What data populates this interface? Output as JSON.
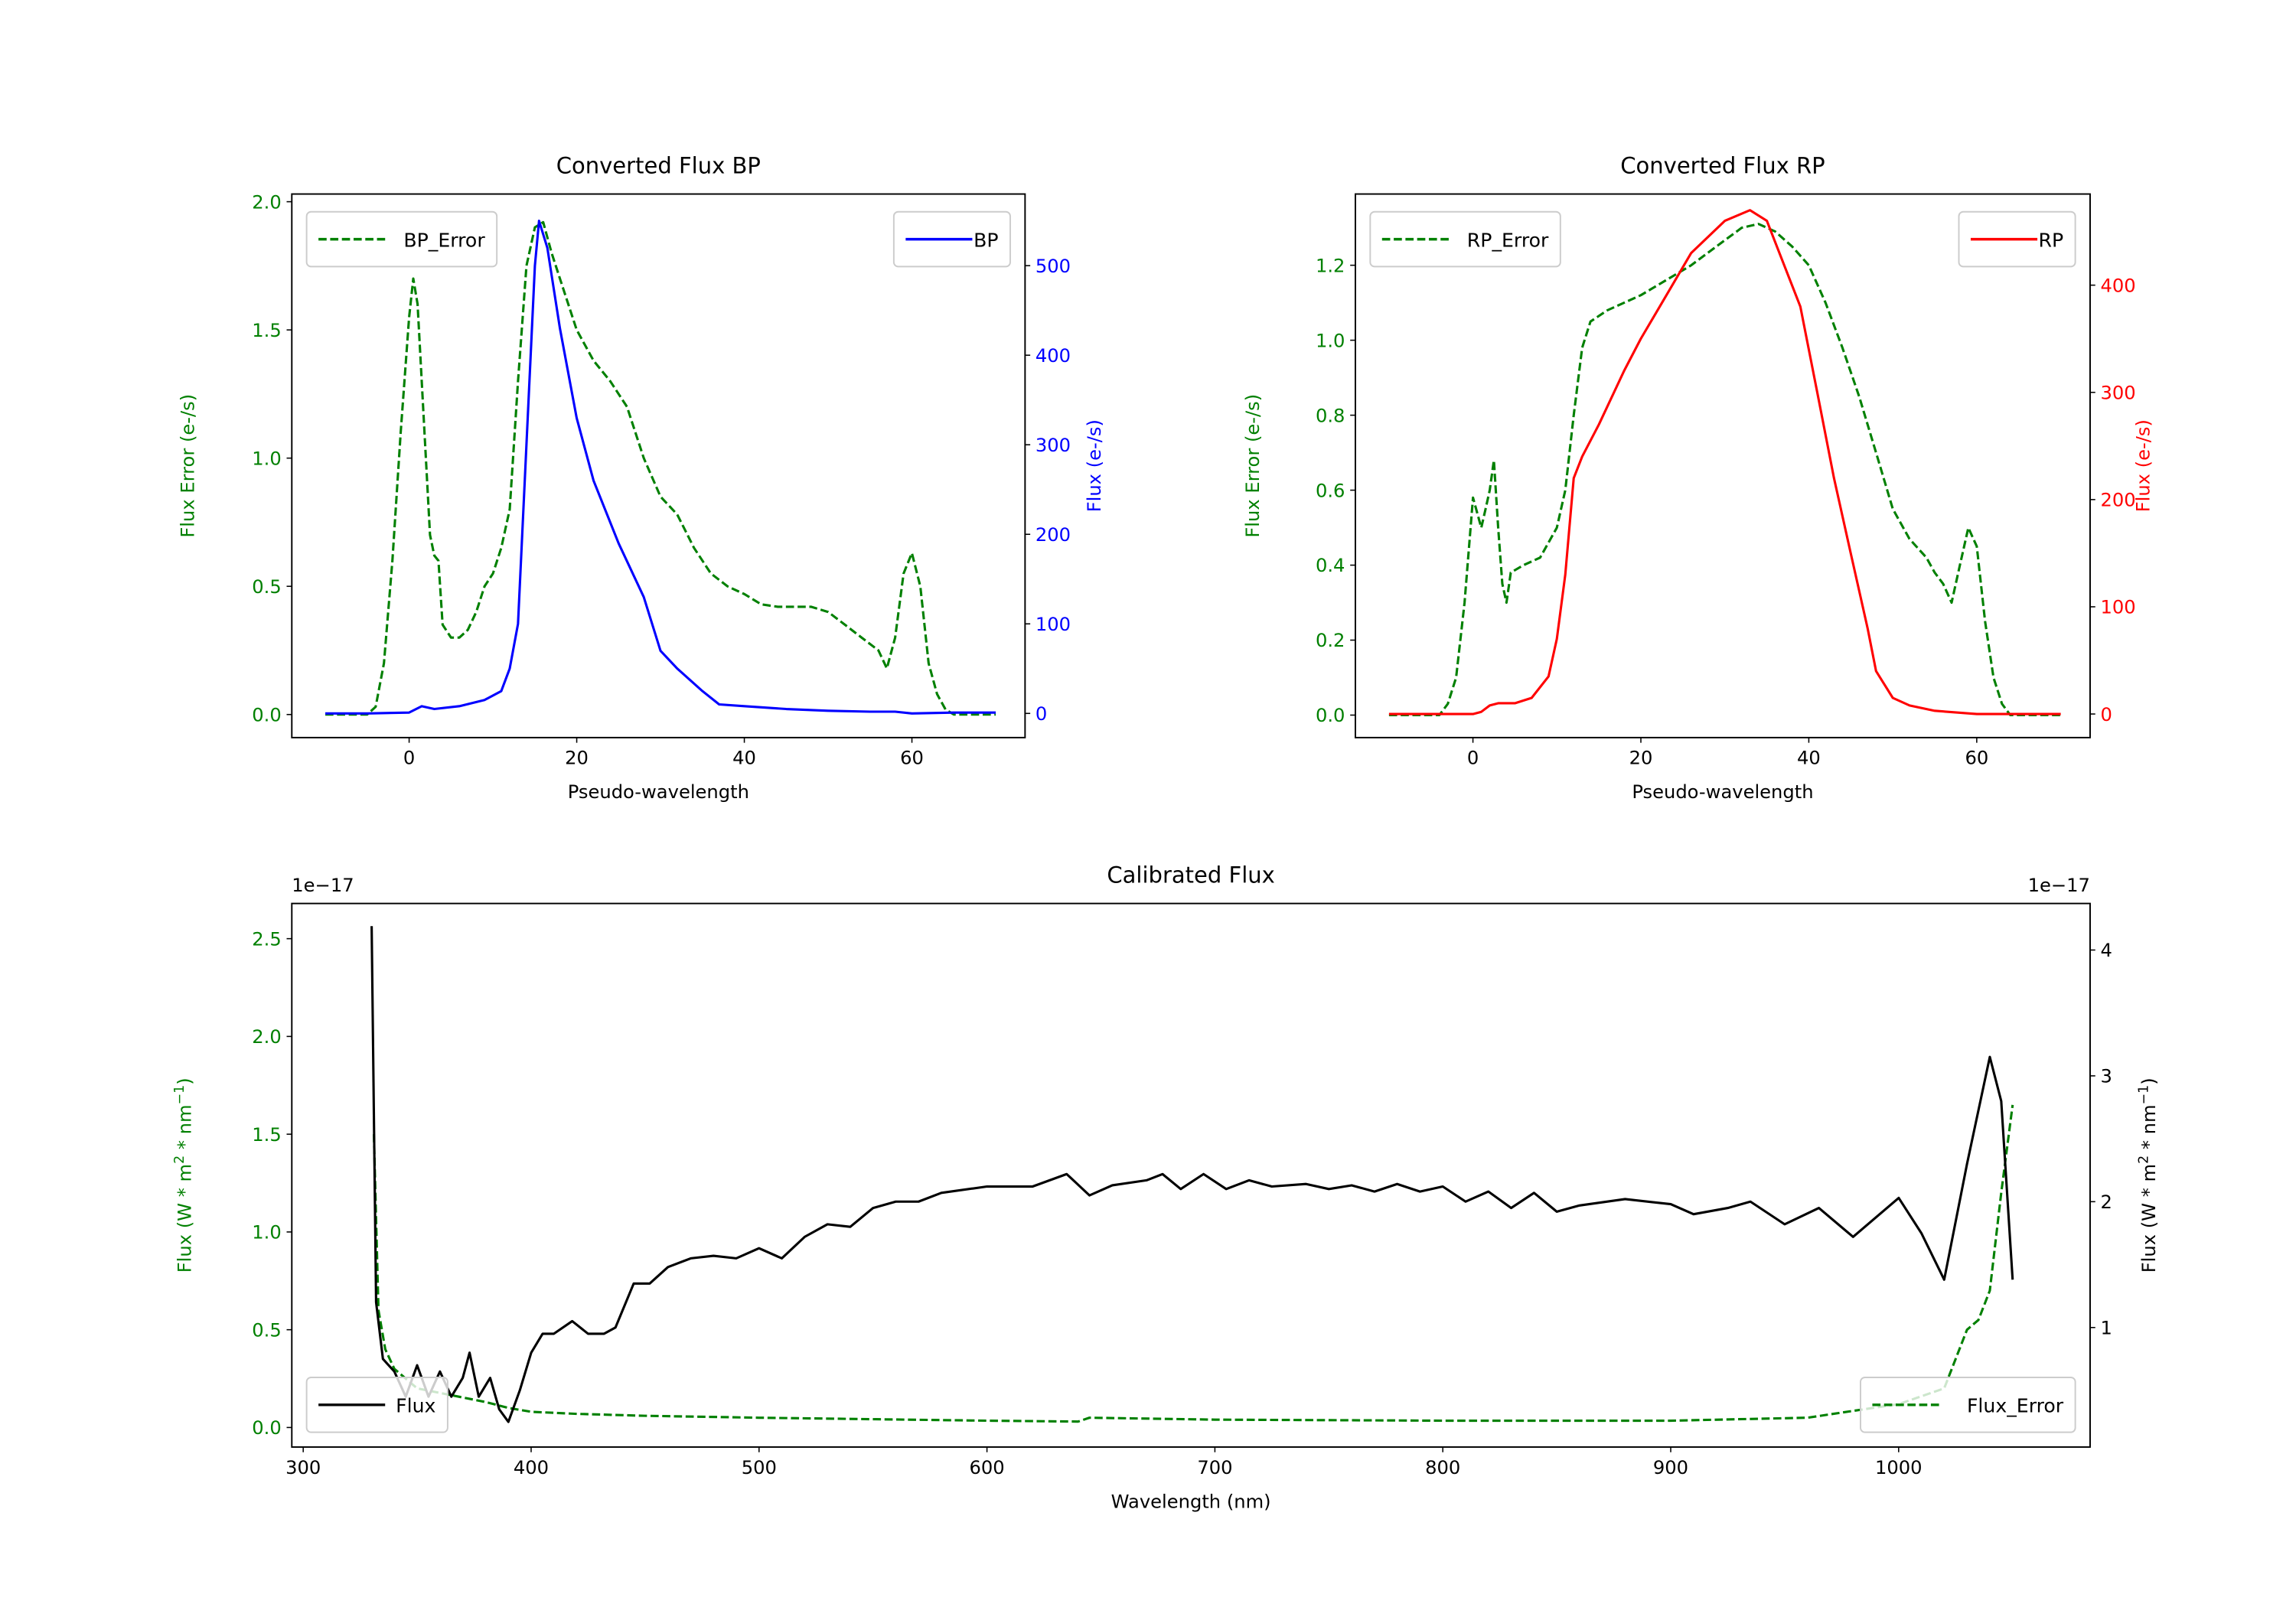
{
  "chart_data": [
    {
      "type": "line",
      "title": "Converted Flux BP",
      "xlabel": "Pseudo-wavelength",
      "ylabel_left": "Flux Error (e-/s)",
      "ylabel_right": "Flux (e-/s)",
      "xlim": [
        -14,
        73.5
      ],
      "ylim_left": [
        -0.09,
        2.03
      ],
      "ylim_right": [
        -27,
        580
      ],
      "xticks": [
        0,
        20,
        40,
        60
      ],
      "yticks_left": [
        "0.0",
        "0.5",
        "1.0",
        "1.5",
        "2.0"
      ],
      "yticks_right": [
        "0",
        "100",
        "200",
        "300",
        "400",
        "500"
      ],
      "left_color": "#008000",
      "right_color": "#0000ff",
      "legend_left": {
        "label": "BP_Error",
        "position": "upper left"
      },
      "legend_right": {
        "label": "BP",
        "position": "upper right"
      },
      "series": [
        {
          "name": "BP_Error",
          "axis": "left",
          "style": "dashed",
          "color": "#008000",
          "x": [
            -10,
            -5,
            -4,
            -3,
            -2,
            -1,
            0,
            0.5,
            1,
            2,
            2.5,
            3,
            3.5,
            4,
            5,
            6,
            7,
            8,
            9,
            10,
            11,
            12,
            13,
            14,
            15,
            16,
            17,
            18,
            20,
            22,
            24,
            26,
            28,
            30,
            32,
            34,
            36,
            38,
            40,
            42,
            44,
            46,
            48,
            50,
            52,
            54,
            56,
            57,
            58,
            59,
            60,
            61,
            62,
            63,
            64,
            65,
            70
          ],
          "y": [
            0,
            0,
            0.03,
            0.2,
            0.6,
            1.1,
            1.55,
            1.7,
            1.6,
            1.0,
            0.7,
            0.62,
            0.6,
            0.35,
            0.3,
            0.3,
            0.33,
            0.4,
            0.5,
            0.55,
            0.65,
            0.8,
            1.3,
            1.75,
            1.9,
            1.92,
            1.8,
            1.7,
            1.5,
            1.38,
            1.3,
            1.2,
            1.0,
            0.85,
            0.78,
            0.65,
            0.55,
            0.5,
            0.47,
            0.43,
            0.42,
            0.42,
            0.42,
            0.4,
            0.35,
            0.3,
            0.25,
            0.18,
            0.3,
            0.55,
            0.63,
            0.5,
            0.2,
            0.08,
            0.02,
            0,
            0
          ]
        },
        {
          "name": "BP",
          "axis": "right",
          "style": "solid",
          "color": "#0000ff",
          "x": [
            -10,
            -5,
            0,
            1.5,
            3,
            6,
            9,
            11,
            12,
            13,
            14,
            15,
            15.5,
            16.5,
            18,
            20,
            22,
            25,
            28,
            30,
            32,
            35,
            37,
            40,
            45,
            50,
            55,
            58,
            60,
            65,
            70
          ],
          "y": [
            0,
            0,
            1,
            8,
            5,
            8,
            15,
            25,
            50,
            100,
            300,
            500,
            550,
            520,
            430,
            330,
            260,
            190,
            130,
            70,
            50,
            25,
            10,
            8,
            5,
            3,
            2,
            2,
            0,
            1,
            1
          ]
        }
      ]
    },
    {
      "type": "line",
      "title": "Converted Flux RP",
      "xlabel": "Pseudo-wavelength",
      "ylabel_left": "Flux Error (e-/s)",
      "ylabel_right": "Flux (e-/s)",
      "xlim": [
        -14,
        73.5
      ],
      "ylim_left": [
        -0.06,
        1.39
      ],
      "ylim_right": [
        -22,
        485
      ],
      "xticks": [
        0,
        20,
        40,
        60
      ],
      "yticks_left": [
        "0.0",
        "0.2",
        "0.4",
        "0.6",
        "0.8",
        "1.0",
        "1.2"
      ],
      "yticks_right": [
        "0",
        "100",
        "200",
        "300",
        "400"
      ],
      "left_color": "#008000",
      "right_color": "#ff0000",
      "legend_left": {
        "label": "RP_Error",
        "position": "upper left"
      },
      "legend_right": {
        "label": "RP",
        "position": "upper right"
      },
      "series": [
        {
          "name": "RP_Error",
          "axis": "left",
          "style": "dashed",
          "color": "#008000",
          "x": [
            -10,
            -4,
            -3,
            -2,
            -1,
            0,
            1,
            1.5,
            2,
            2.5,
            3,
            3.5,
            4,
            4.5,
            6,
            8,
            10,
            11,
            12,
            13,
            14,
            16,
            18,
            20,
            23,
            26,
            29,
            32,
            34,
            36,
            38,
            40,
            42,
            44,
            46,
            48,
            50,
            52,
            54,
            55,
            56,
            57,
            58,
            59,
            60,
            61,
            62,
            63,
            64,
            70
          ],
          "y": [
            0,
            0,
            0.03,
            0.1,
            0.3,
            0.58,
            0.5,
            0.55,
            0.6,
            0.68,
            0.5,
            0.35,
            0.3,
            0.38,
            0.4,
            0.42,
            0.5,
            0.6,
            0.8,
            0.98,
            1.05,
            1.08,
            1.1,
            1.12,
            1.16,
            1.2,
            1.25,
            1.3,
            1.31,
            1.29,
            1.25,
            1.2,
            1.1,
            0.98,
            0.85,
            0.7,
            0.55,
            0.47,
            0.42,
            0.38,
            0.35,
            0.3,
            0.4,
            0.5,
            0.45,
            0.25,
            0.1,
            0.03,
            0,
            0
          ]
        },
        {
          "name": "RP",
          "axis": "right",
          "style": "solid",
          "color": "#ff0000",
          "x": [
            -10,
            0,
            1,
            2,
            3,
            5,
            7,
            9,
            10,
            11,
            12,
            13,
            15,
            18,
            20,
            23,
            26,
            30,
            33,
            35,
            37,
            39,
            41,
            43,
            45,
            47,
            48,
            50,
            52,
            55,
            60,
            70
          ],
          "y": [
            0,
            0,
            2,
            8,
            10,
            10,
            15,
            35,
            70,
            130,
            220,
            240,
            270,
            320,
            350,
            390,
            430,
            460,
            470,
            460,
            420,
            380,
            300,
            220,
            150,
            80,
            40,
            15,
            8,
            3,
            0,
            0
          ]
        }
      ]
    },
    {
      "type": "line",
      "title": "Calibrated Flux",
      "xlabel": "Wavelength (nm)",
      "ylabel_left": [
        "Flux (W * m",
        "2",
        " * nm",
        "−1",
        ")"
      ],
      "ylabel_right": [
        "Flux (W * m",
        "2",
        " * nm",
        "−1",
        ")"
      ],
      "offset_left": "1e−17",
      "offset_right": "1e−17",
      "xlim": [
        295,
        1084
      ],
      "ylim_left": [
        -0.1,
        2.68
      ],
      "ylim_right": [
        0.05,
        4.37
      ],
      "xticks": [
        300,
        400,
        500,
        600,
        700,
        800,
        900,
        1000
      ],
      "yticks_left": [
        "0.0",
        "0.5",
        "1.0",
        "1.5",
        "2.0",
        "2.5"
      ],
      "yticks_right": [
        "1",
        "2",
        "3",
        "4"
      ],
      "left_color": "#008000",
      "right_color": "#000000",
      "legend_left": {
        "label": "Flux",
        "position": "lower left"
      },
      "legend_right": {
        "label": "Flux_Error",
        "position": "lower right"
      },
      "series": [
        {
          "name": "Flux_Error",
          "axis": "left",
          "style": "dashed",
          "color": "#008000",
          "x": [
            331,
            333,
            336,
            340,
            350,
            380,
            390,
            400,
            420,
            450,
            500,
            600,
            640,
            645,
            700,
            800,
            900,
            960,
            1000,
            1020,
            1030,
            1035,
            1040,
            1045,
            1050
          ],
          "y": [
            1.5,
            0.6,
            0.4,
            0.3,
            0.2,
            0.13,
            0.1,
            0.08,
            0.07,
            0.06,
            0.05,
            0.035,
            0.03,
            0.05,
            0.04,
            0.035,
            0.035,
            0.05,
            0.12,
            0.2,
            0.5,
            0.55,
            0.7,
            1.2,
            1.65
          ]
        },
        {
          "name": "Flux",
          "axis": "right",
          "style": "solid",
          "color": "#000000",
          "x": [
            330,
            332,
            335,
            340,
            345,
            350,
            355,
            360,
            365,
            370,
            373,
            377,
            382,
            386,
            390,
            395,
            400,
            405,
            410,
            418,
            425,
            432,
            437,
            445,
            452,
            460,
            470,
            480,
            490,
            500,
            510,
            520,
            530,
            540,
            550,
            560,
            570,
            580,
            600,
            620,
            635,
            645,
            655,
            670,
            677,
            685,
            695,
            705,
            715,
            725,
            740,
            750,
            760,
            770,
            780,
            790,
            800,
            810,
            820,
            830,
            840,
            850,
            860,
            880,
            900,
            910,
            925,
            935,
            950,
            965,
            980,
            1000,
            1010,
            1020,
            1030,
            1040,
            1045,
            1050
          ],
          "y": [
            4.19,
            1.2,
            0.75,
            0.65,
            0.45,
            0.7,
            0.45,
            0.65,
            0.45,
            0.6,
            0.8,
            0.45,
            0.6,
            0.35,
            0.25,
            0.5,
            0.8,
            0.95,
            0.95,
            1.05,
            0.95,
            0.95,
            1.0,
            1.35,
            1.35,
            1.48,
            1.55,
            1.57,
            1.55,
            1.63,
            1.55,
            1.72,
            1.82,
            1.8,
            1.95,
            2.0,
            2.0,
            2.07,
            2.12,
            2.12,
            2.22,
            2.05,
            2.13,
            2.17,
            2.22,
            2.1,
            2.22,
            2.1,
            2.17,
            2.12,
            2.14,
            2.1,
            2.13,
            2.08,
            2.14,
            2.08,
            2.12,
            2.0,
            2.08,
            1.95,
            2.07,
            1.92,
            1.97,
            2.02,
            1.98,
            1.9,
            1.95,
            2.0,
            1.82,
            1.95,
            1.72,
            2.03,
            1.75,
            1.38,
            2.3,
            3.15,
            2.8,
            1.38
          ]
        }
      ]
    }
  ]
}
